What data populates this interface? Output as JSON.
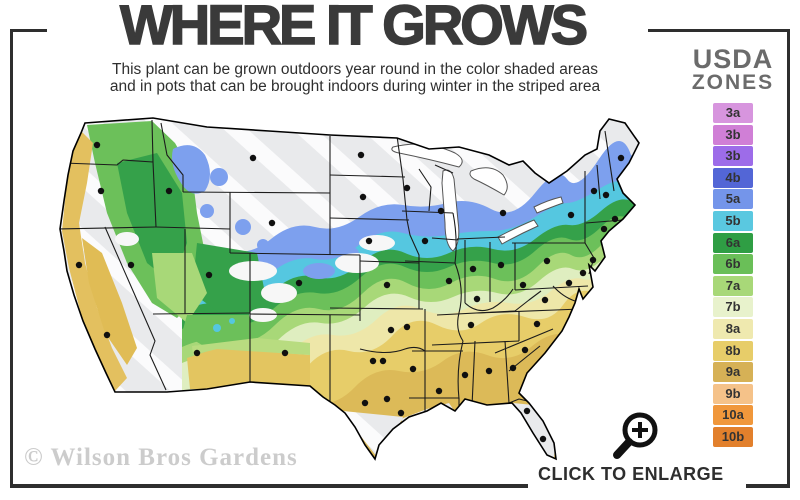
{
  "header": {
    "title": "WHERE IT GROWS",
    "subtitle_line1": "This plant can be grown outdoors year round in the color shaded areas",
    "subtitle_line2": "and in pots that can be brought indoors during winter in the striped area"
  },
  "legend": {
    "title_line1": "USDA",
    "title_line2": "ZONES",
    "zones": [
      {
        "label": "3a",
        "color": "#d795de"
      },
      {
        "label": "3b",
        "color": "#d07fd6"
      },
      {
        "label": "3b",
        "color": "#9d6ce9"
      },
      {
        "label": "4b",
        "color": "#5366d6"
      },
      {
        "label": "5a",
        "color": "#7495ea"
      },
      {
        "label": "5b",
        "color": "#5ac8e0"
      },
      {
        "label": "6a",
        "color": "#2f9e44"
      },
      {
        "label": "6b",
        "color": "#6abf58"
      },
      {
        "label": "7a",
        "color": "#a8d878"
      },
      {
        "label": "7b",
        "color": "#e8f2cc"
      },
      {
        "label": "8a",
        "color": "#efe9af"
      },
      {
        "label": "8b",
        "color": "#e7cd69"
      },
      {
        "label": "9a",
        "color": "#d6b156"
      },
      {
        "label": "9b",
        "color": "#f5c289"
      },
      {
        "label": "10a",
        "color": "#f0973b"
      },
      {
        "label": "10b",
        "color": "#e2802c"
      }
    ]
  },
  "map": {
    "watermark": "© Wilson Bros Gardens",
    "palette": {
      "striped_gray": "#e9eaec",
      "stripe_white": "#fbfbfc",
      "blue": "#7da0ee",
      "cyan": "#55c7e0",
      "green_dark": "#35a14a",
      "green_mid": "#6cc05a",
      "yellow_green": "#a8d878",
      "pale_green": "#dfeec0",
      "pale_yellow": "#eee7a9",
      "gold": "#e7cd69",
      "dark_gold": "#dcba58",
      "coast_tan": "#e3c05f",
      "border_black": "#1c1c1c"
    }
  },
  "footer": {
    "click_to_enlarge": "CLICK TO ENLARGE"
  },
  "frame_color": "#2e2e2e"
}
